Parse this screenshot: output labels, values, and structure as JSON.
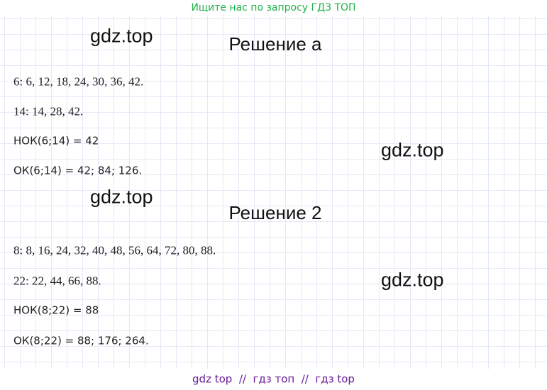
{
  "header": {
    "text": "Ищите нас по запросу ГДЗ ТОП"
  },
  "watermarks": [
    "gdz.top",
    "gdz.top",
    "gdz.top",
    "gdz.top"
  ],
  "sections": [
    {
      "title": "Решение а",
      "lines": [
        "6: 6, 12, 18, 24, 30, 36, 42.",
        "14: 14, 28, 42.",
        "НОК(6;14) = 42",
        "ОК(6;14) = 42; 84; 126."
      ]
    },
    {
      "title": "Решение 2",
      "lines": [
        "8: 8, 16, 24, 32, 40, 48, 56, 64, 72, 80, 88.",
        "22: 22, 44, 66, 88.",
        "НОК(8;22) = 88",
        "ОК(8;22) = 88; 176; 264."
      ]
    }
  ],
  "footer": {
    "text": "gdz top  //  гдз топ  //  гдз top"
  }
}
